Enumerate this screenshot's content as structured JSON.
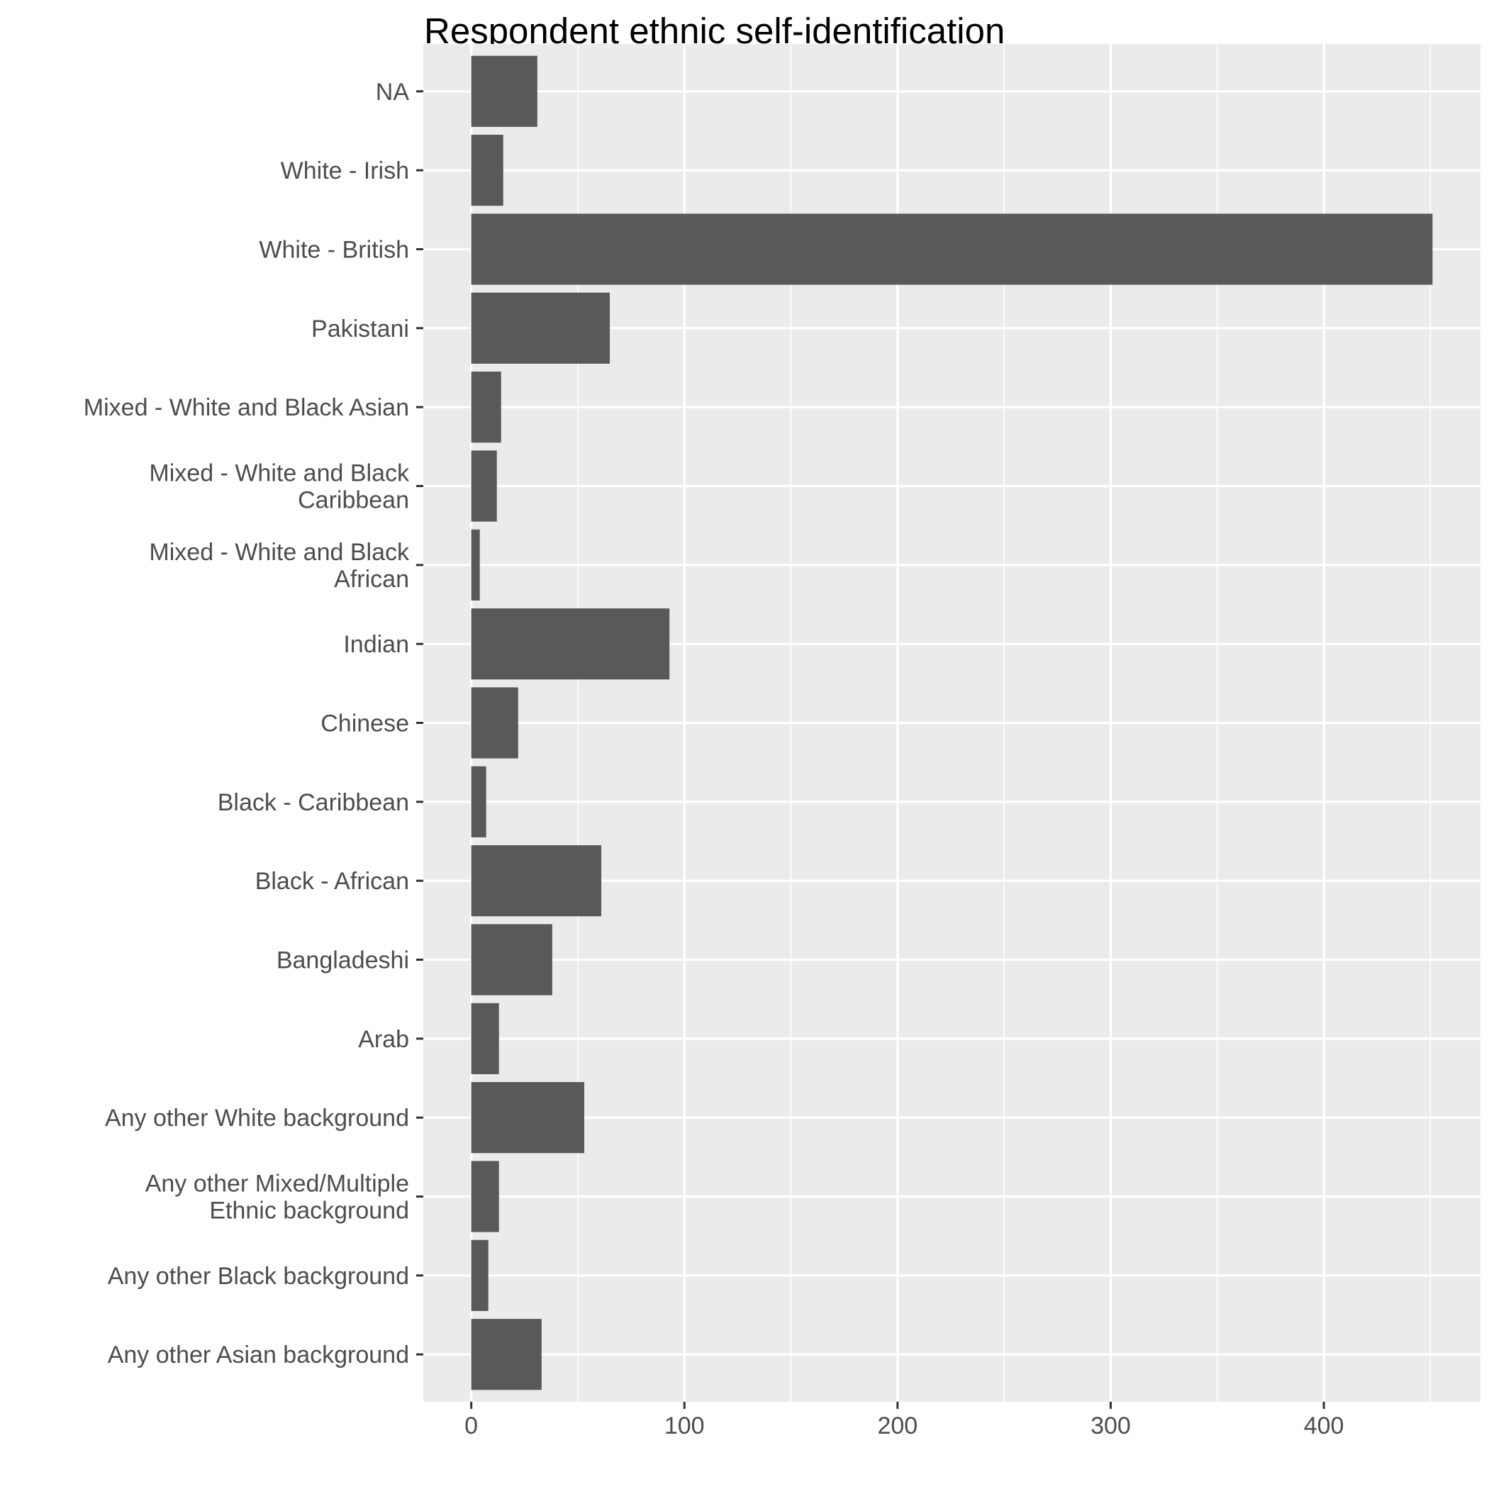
{
  "chart_data": {
    "type": "bar",
    "orientation": "horizontal",
    "title": "Respondent ethnic self-identification",
    "xlabel": "",
    "ylabel": "",
    "categories": [
      "NA",
      "White - Irish",
      "White - British",
      "Pakistani",
      "Mixed - White and Black Asian",
      "Mixed - White and Black\nCaribbean",
      "Mixed - White and Black\nAfrican",
      "Indian",
      "Chinese",
      "Black - Caribbean",
      "Black - African",
      "Bangladeshi",
      "Arab",
      "Any other White background",
      "Any other Mixed/Multiple\nEthnic background",
      "Any other Black background",
      "Any other Asian background"
    ],
    "values": [
      31,
      15,
      451,
      65,
      14,
      12,
      4,
      93,
      22,
      7,
      61,
      38,
      13,
      53,
      13,
      8,
      33
    ],
    "xlim": [
      -22.5,
      473.5
    ],
    "xticks": [
      0,
      100,
      200,
      300,
      400
    ],
    "grid": true,
    "colors": {
      "panel_background": "#ebebeb",
      "grid_line": "#ffffff",
      "bar_fill": "#595959",
      "tick_text": "#4d4d4d",
      "tick_mark": "#333333"
    }
  }
}
